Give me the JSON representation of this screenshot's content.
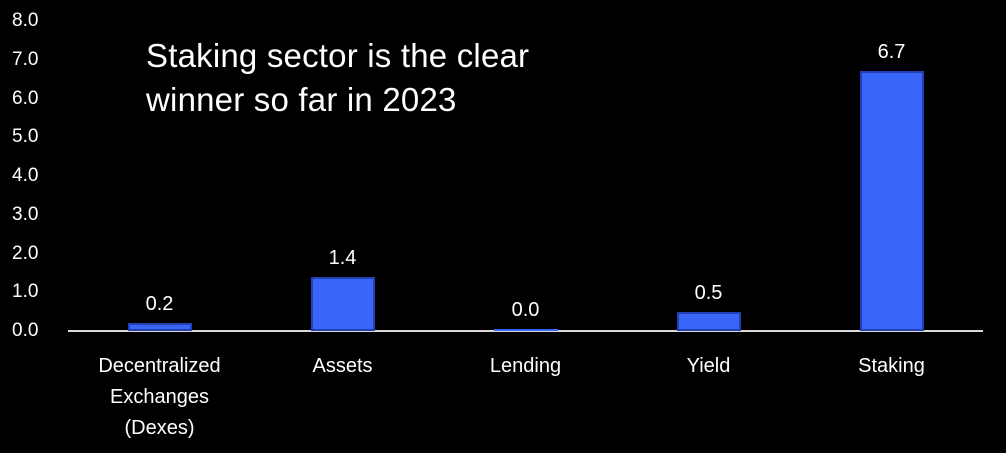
{
  "chart_data": {
    "type": "bar",
    "title": "Staking sector is the clear winner so far in 2023",
    "title_lines": [
      "Staking sector is the clear",
      "winner so far in 2023"
    ],
    "categories": [
      "Decentralized Exchanges (Dexes)",
      "Assets",
      "Lending",
      "Yield",
      "Staking"
    ],
    "category_label_lines": [
      [
        "Decentralized",
        "Exchanges",
        "(Dexes)"
      ],
      [
        "Assets"
      ],
      [
        "Lending"
      ],
      [
        "Yield"
      ],
      [
        "Staking"
      ]
    ],
    "values": [
      0.2,
      1.4,
      0.0,
      0.5,
      6.7
    ],
    "value_labels": [
      "0.2",
      "1.4",
      "0.0",
      "0.5",
      "6.7"
    ],
    "y_ticks": [
      "8.0",
      "7.0",
      "6.0",
      "5.0",
      "4.0",
      "3.0",
      "2.0",
      "1.0",
      "0.0"
    ],
    "ylim": [
      0,
      8
    ],
    "xlabel": "",
    "ylabel": "",
    "legend": "none",
    "grid": false,
    "colors": {
      "background": "#000000",
      "bar_fill": "#3A66F8",
      "bar_border": "#2240B4",
      "axis_line": "#D9D9D9",
      "text": "#FFFFFF"
    }
  }
}
